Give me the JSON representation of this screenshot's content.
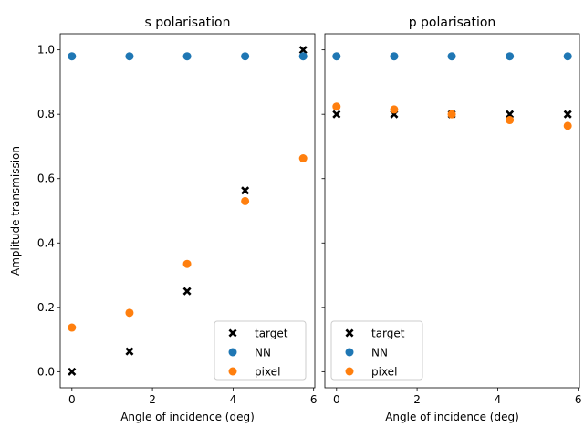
{
  "chart_data": [
    {
      "type": "scatter",
      "title": "s polarisation",
      "xlabel": "Angle of incidence (deg)",
      "ylabel": "Amplitude transmission",
      "xlim": [
        -0.29,
        6.03
      ],
      "ylim": [
        -0.05,
        1.05
      ],
      "xticks": [
        0,
        2,
        4,
        6
      ],
      "yticks": [
        0.0,
        0.2,
        0.4,
        0.6,
        0.8,
        1.0
      ],
      "yticklabels_visible": true,
      "legend": {
        "position": "lower-right",
        "entries": [
          "target",
          "NN",
          "pixel"
        ]
      },
      "series": [
        {
          "name": "target",
          "marker": "x",
          "color": "#000000",
          "x": [
            0,
            1.43,
            2.86,
            4.3,
            5.74
          ],
          "y": [
            0.0,
            0.063,
            0.25,
            0.563,
            1.0
          ]
        },
        {
          "name": "NN",
          "marker": "circle",
          "color": "#1f77b4",
          "x": [
            0,
            1.43,
            2.86,
            4.3,
            5.74
          ],
          "y": [
            0.98,
            0.98,
            0.98,
            0.98,
            0.98
          ]
        },
        {
          "name": "pixel",
          "marker": "circle",
          "color": "#ff7f0e",
          "x": [
            0,
            1.43,
            2.86,
            4.3,
            5.74
          ],
          "y": [
            0.137,
            0.183,
            0.335,
            0.53,
            0.663
          ]
        }
      ]
    },
    {
      "type": "scatter",
      "title": "p polarisation",
      "xlabel": "Angle of incidence (deg)",
      "ylabel": "",
      "xlim": [
        -0.29,
        6.03
      ],
      "ylim": [
        -0.05,
        1.05
      ],
      "xticks": [
        0,
        2,
        4,
        6
      ],
      "yticks": [
        0.0,
        0.2,
        0.4,
        0.6,
        0.8,
        1.0
      ],
      "yticklabels_visible": false,
      "legend": {
        "position": "lower-left",
        "entries": [
          "target",
          "NN",
          "pixel"
        ]
      },
      "series": [
        {
          "name": "target",
          "marker": "x",
          "color": "#000000",
          "x": [
            0,
            1.43,
            2.86,
            4.3,
            5.74
          ],
          "y": [
            0.8,
            0.8,
            0.8,
            0.8,
            0.8
          ]
        },
        {
          "name": "NN",
          "marker": "circle",
          "color": "#1f77b4",
          "x": [
            0,
            1.43,
            2.86,
            4.3,
            5.74
          ],
          "y": [
            0.98,
            0.98,
            0.98,
            0.98,
            0.98
          ]
        },
        {
          "name": "pixel",
          "marker": "circle",
          "color": "#ff7f0e",
          "x": [
            0,
            1.43,
            2.86,
            4.3,
            5.74
          ],
          "y": [
            0.824,
            0.815,
            0.8,
            0.782,
            0.764
          ]
        }
      ]
    }
  ]
}
